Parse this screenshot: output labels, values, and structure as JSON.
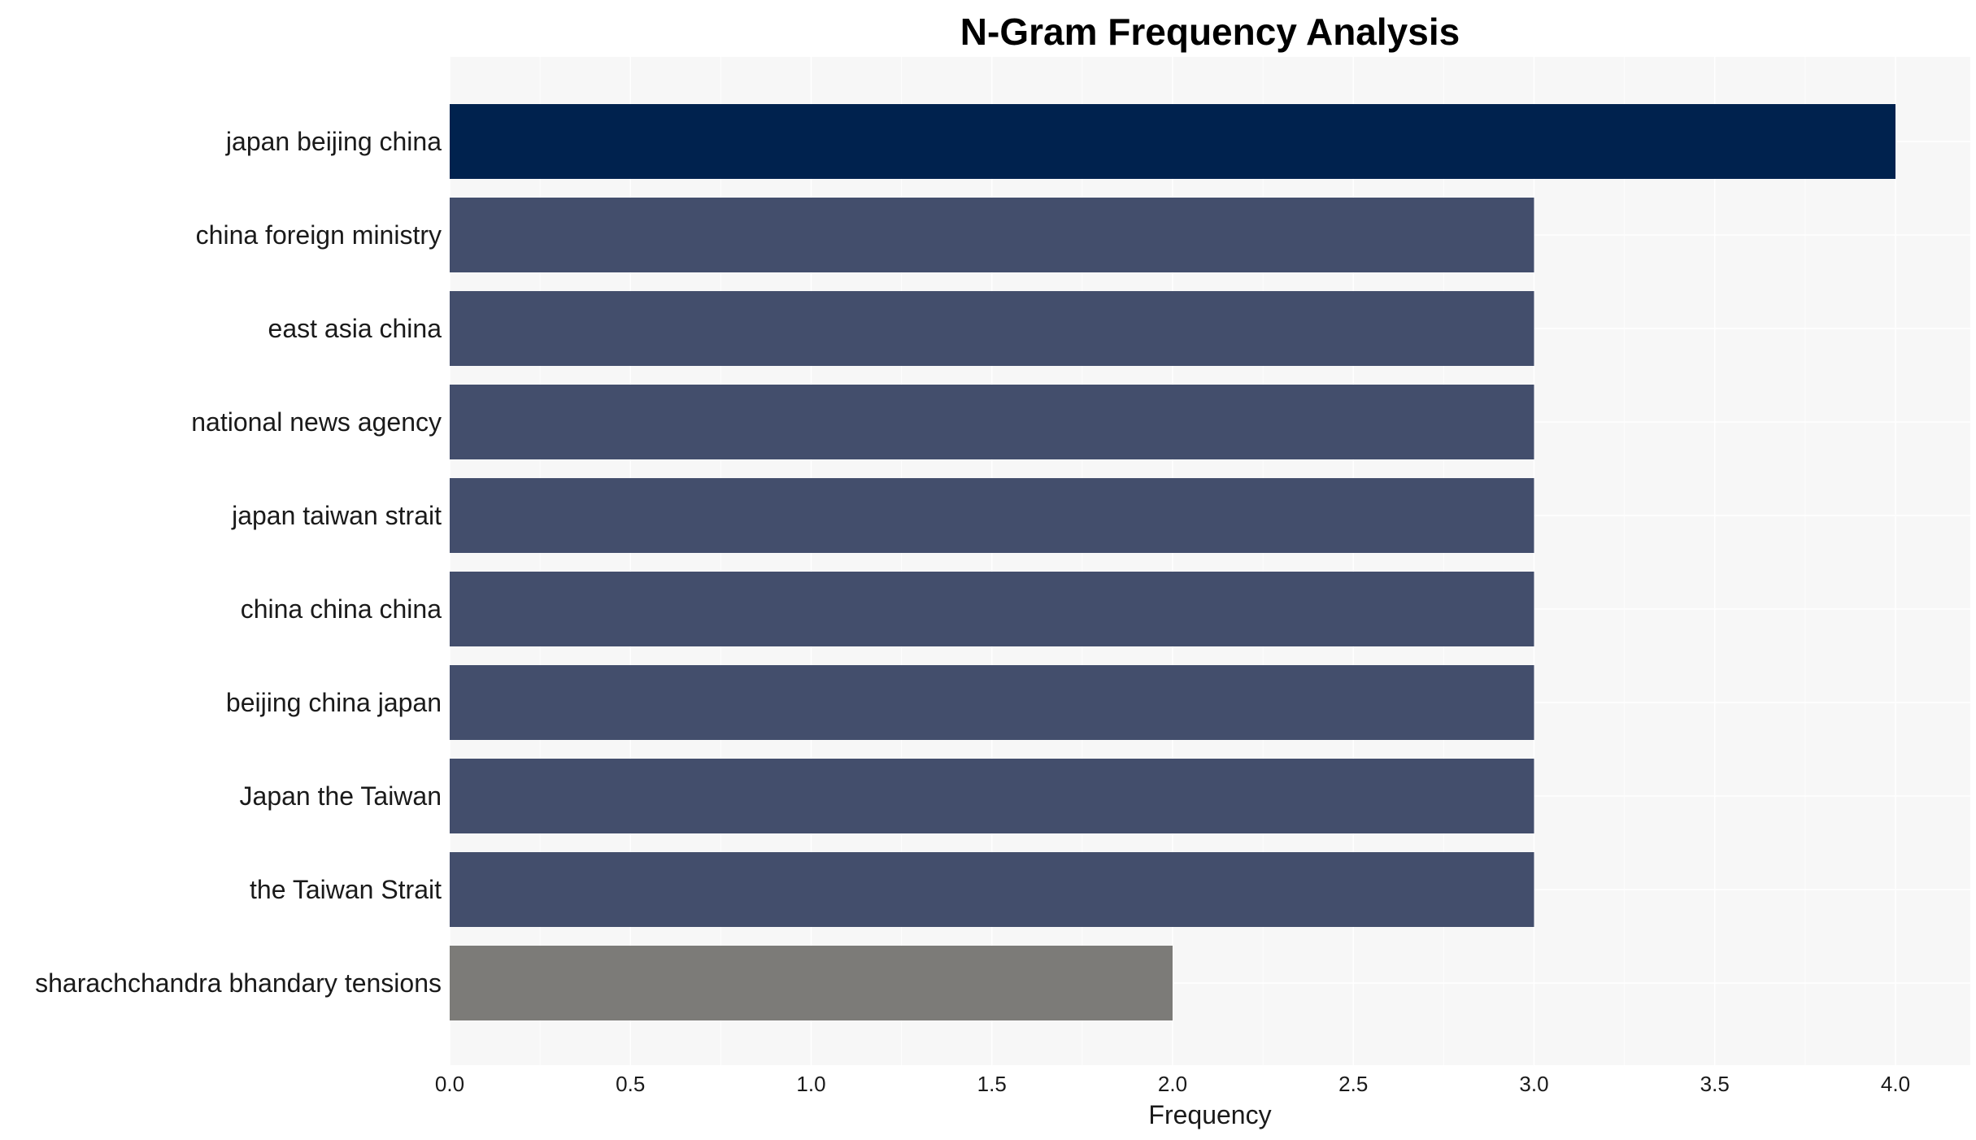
{
  "chart_data": {
    "type": "bar",
    "orientation": "horizontal",
    "title": "N-Gram Frequency Analysis",
    "xlabel": "Frequency",
    "ylabel": "",
    "xlim": [
      0,
      4.2
    ],
    "xticks": [
      "0.0",
      "0.5",
      "1.0",
      "1.5",
      "2.0",
      "2.5",
      "3.0",
      "3.5",
      "4.0"
    ],
    "grid": true,
    "categories": [
      "japan beijing china",
      "china foreign ministry",
      "east asia china",
      "national news agency",
      "japan taiwan strait",
      "china china china",
      "beijing china japan",
      "Japan the Taiwan",
      "the Taiwan Strait",
      "sharachchandra bhandary tensions"
    ],
    "values": [
      4,
      3,
      3,
      3,
      3,
      3,
      3,
      3,
      3,
      2
    ],
    "colors": [
      "#00224e",
      "#434e6c",
      "#434e6c",
      "#434e6c",
      "#434e6c",
      "#434e6c",
      "#434e6c",
      "#434e6c",
      "#434e6c",
      "#7c7b78"
    ],
    "background": "#f7f7f7",
    "grid_color": "#ffffff"
  }
}
